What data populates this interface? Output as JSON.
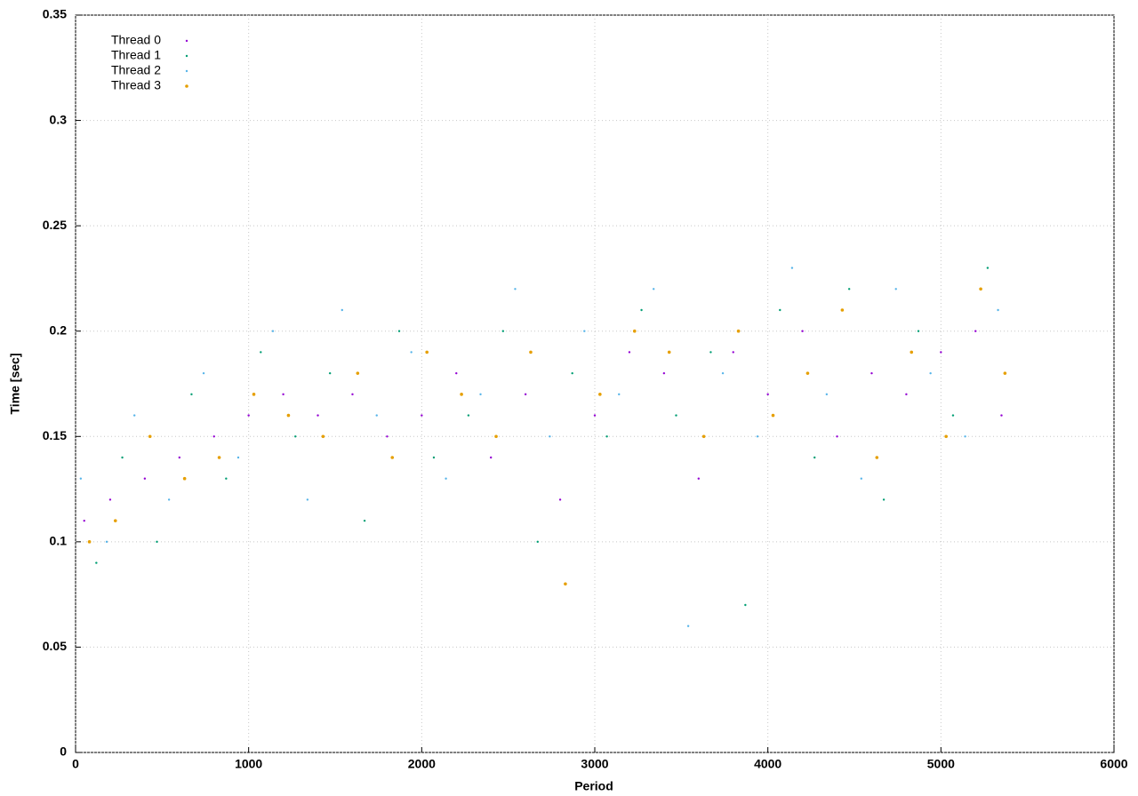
{
  "chart_data": {
    "type": "scatter",
    "xlabel": "Period",
    "ylabel": "Time [sec]",
    "xlim": [
      0,
      6000
    ],
    "xticks": [
      0,
      1000,
      2000,
      3000,
      4000,
      5000,
      6000
    ],
    "ylim": [
      0,
      0.35
    ],
    "yticks": [
      0,
      0.05,
      0.1,
      0.15,
      0.2,
      0.25,
      0.3,
      0.35
    ],
    "grid": true,
    "legend": "upper-left",
    "series": [
      {
        "name": "Thread 0",
        "color": "#9400d3",
        "x": [
          50,
          200,
          400,
          600,
          800,
          1000,
          1200,
          1400,
          1600,
          1800,
          2000,
          2200,
          2400,
          2600,
          2800,
          3000,
          3200,
          3400,
          3600,
          3800,
          4000,
          4200,
          4400,
          4600,
          4800,
          5000,
          5200,
          5350
        ],
        "values": [
          0.11,
          0.12,
          0.13,
          0.14,
          0.15,
          0.16,
          0.17,
          0.16,
          0.17,
          0.15,
          0.16,
          0.18,
          0.14,
          0.17,
          0.12,
          0.16,
          0.19,
          0.18,
          0.13,
          0.19,
          0.17,
          0.2,
          0.15,
          0.18,
          0.17,
          0.19,
          0.2,
          0.16
        ]
      },
      {
        "name": "Thread 1",
        "color": "#009e73",
        "x": [
          120,
          270,
          470,
          670,
          870,
          1070,
          1270,
          1470,
          1670,
          1870,
          2070,
          2270,
          2470,
          2670,
          2870,
          3070,
          3270,
          3470,
          3670,
          3870,
          4070,
          4270,
          4470,
          4670,
          4870,
          5070,
          5270
        ],
        "values": [
          0.09,
          0.14,
          0.1,
          0.17,
          0.13,
          0.19,
          0.15,
          0.18,
          0.11,
          0.2,
          0.14,
          0.16,
          0.2,
          0.1,
          0.18,
          0.15,
          0.21,
          0.16,
          0.19,
          0.07,
          0.21,
          0.14,
          0.22,
          0.12,
          0.2,
          0.16,
          0.23
        ]
      },
      {
        "name": "Thread 2",
        "color": "#56b4e9",
        "x": [
          30,
          180,
          340,
          540,
          740,
          940,
          1140,
          1340,
          1540,
          1740,
          1940,
          2140,
          2340,
          2540,
          2740,
          2940,
          3140,
          3340,
          3540,
          3740,
          3940,
          4140,
          4340,
          4540,
          4740,
          4940,
          5140,
          5330
        ],
        "values": [
          0.13,
          0.1,
          0.16,
          0.12,
          0.18,
          0.14,
          0.2,
          0.12,
          0.21,
          0.16,
          0.19,
          0.13,
          0.17,
          0.22,
          0.15,
          0.2,
          0.17,
          0.22,
          0.06,
          0.18,
          0.15,
          0.23,
          0.17,
          0.13,
          0.22,
          0.18,
          0.15,
          0.21
        ]
      },
      {
        "name": "Thread 3",
        "color": "#e69f00",
        "x": [
          80,
          230,
          430,
          630,
          830,
          1030,
          1230,
          1430,
          1630,
          1830,
          2030,
          2230,
          2430,
          2630,
          2830,
          3030,
          3230,
          3430,
          3630,
          3830,
          4030,
          4230,
          4430,
          4630,
          4830,
          5030,
          5230,
          5370
        ],
        "values": [
          0.1,
          0.11,
          0.15,
          0.13,
          0.14,
          0.17,
          0.16,
          0.15,
          0.18,
          0.14,
          0.19,
          0.17,
          0.15,
          0.19,
          0.08,
          0.17,
          0.2,
          0.19,
          0.15,
          0.2,
          0.16,
          0.18,
          0.21,
          0.14,
          0.19,
          0.15,
          0.22,
          0.18
        ]
      }
    ]
  }
}
